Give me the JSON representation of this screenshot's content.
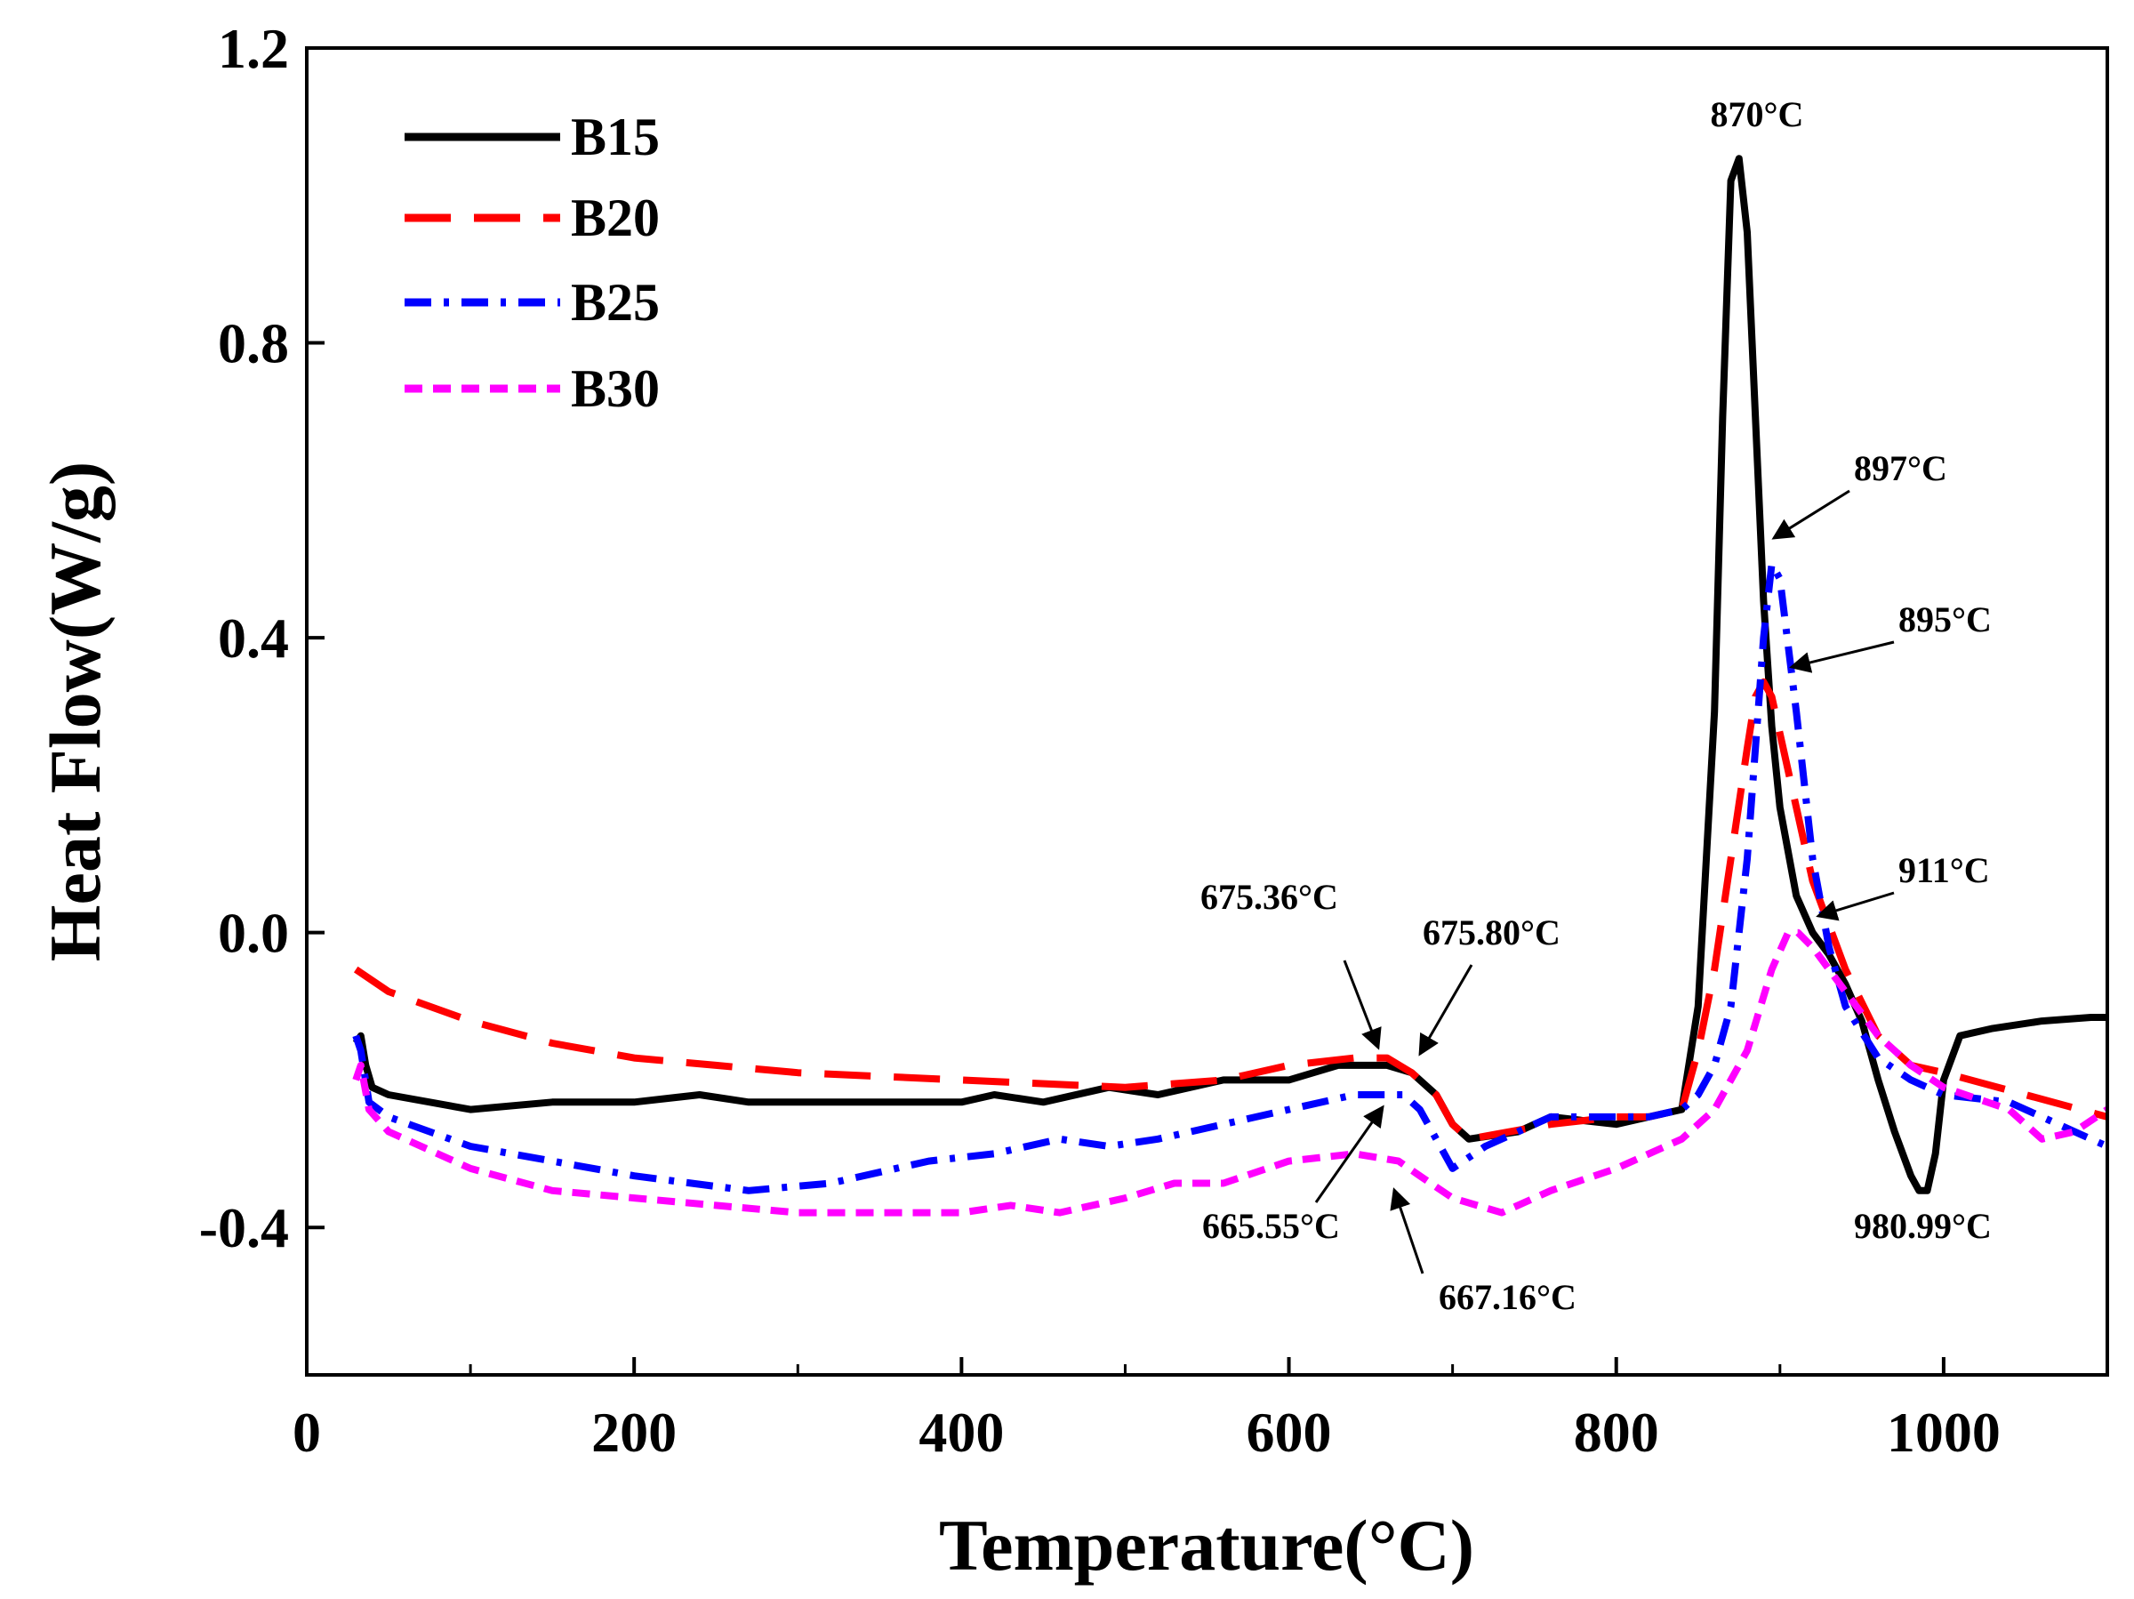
{
  "chart_data": {
    "type": "line",
    "title": "",
    "xlabel": "Temperature(°C)",
    "ylabel": "Heat Flow(W/g)",
    "xlim": [
      0,
      1100
    ],
    "ylim": [
      -0.6,
      1.2
    ],
    "xticks": [
      0,
      200,
      400,
      600,
      800,
      1000
    ],
    "xtick_labels": [
      "0",
      "200",
      "400",
      "600",
      "800",
      "1000"
    ],
    "xminor": [
      100,
      300,
      500,
      700,
      900,
      1100
    ],
    "yticks": [
      -0.4,
      0.0,
      0.4,
      0.8,
      1.2
    ],
    "ytick_labels": [
      "-0.4",
      "0.0",
      "0.4",
      "0.8",
      "1.2"
    ],
    "legend_position": "top-left",
    "series": [
      {
        "name": "B15",
        "color": "#000000",
        "dash": "solid",
        "x": [
          30,
          33,
          36,
          40,
          50,
          100,
          150,
          200,
          240,
          270,
          300,
          400,
          420,
          450,
          490,
          520,
          560,
          600,
          630,
          650,
          660,
          675,
          690,
          700,
          710,
          740,
          760,
          800,
          820,
          840,
          850,
          860,
          865,
          870,
          875,
          880,
          885,
          890,
          895,
          900,
          910,
          920,
          930,
          940,
          950,
          960,
          970,
          980,
          985,
          990,
          995,
          1000,
          1010,
          1030,
          1060,
          1090,
          1100
        ],
        "y": [
          -0.15,
          -0.14,
          -0.18,
          -0.21,
          -0.22,
          -0.24,
          -0.23,
          -0.23,
          -0.22,
          -0.23,
          -0.23,
          -0.23,
          -0.22,
          -0.23,
          -0.21,
          -0.22,
          -0.2,
          -0.2,
          -0.18,
          -0.18,
          -0.18,
          -0.19,
          -0.22,
          -0.26,
          -0.28,
          -0.27,
          -0.25,
          -0.26,
          -0.25,
          -0.24,
          -0.1,
          0.3,
          0.7,
          1.02,
          1.05,
          0.95,
          0.7,
          0.45,
          0.28,
          0.17,
          0.05,
          0.0,
          -0.03,
          -0.07,
          -0.12,
          -0.2,
          -0.27,
          -0.33,
          -0.35,
          -0.35,
          -0.3,
          -0.2,
          -0.14,
          -0.13,
          -0.12,
          -0.115,
          -0.115
        ]
      },
      {
        "name": "B20",
        "color": "#ff0000",
        "dash": "long-dash",
        "x": [
          30,
          50,
          100,
          150,
          200,
          250,
          300,
          400,
          500,
          560,
          600,
          640,
          660,
          675,
          690,
          700,
          710,
          760,
          800,
          820,
          840,
          850,
          860,
          870,
          880,
          885,
          890,
          895,
          900,
          910,
          920,
          940,
          960,
          980,
          1000,
          1050,
          1100
        ],
        "y": [
          -0.05,
          -0.08,
          -0.12,
          -0.15,
          -0.17,
          -0.18,
          -0.19,
          -0.2,
          -0.21,
          -0.2,
          -0.18,
          -0.17,
          -0.17,
          -0.19,
          -0.22,
          -0.26,
          -0.28,
          -0.26,
          -0.25,
          -0.25,
          -0.24,
          -0.16,
          -0.05,
          0.1,
          0.25,
          0.32,
          0.34,
          0.32,
          0.27,
          0.17,
          0.07,
          -0.05,
          -0.14,
          -0.18,
          -0.19,
          -0.22,
          -0.25
        ]
      },
      {
        "name": "B25",
        "color": "#0000ff",
        "dash": "dash-dot",
        "x": [
          30,
          33,
          38,
          50,
          100,
          150,
          200,
          270,
          320,
          380,
          420,
          460,
          490,
          520,
          560,
          600,
          640,
          660,
          670,
          680,
          690,
          700,
          720,
          740,
          760,
          800,
          820,
          840,
          850,
          860,
          870,
          880,
          890,
          895,
          900,
          910,
          920,
          930,
          940,
          960,
          980,
          1000,
          1040,
          1070,
          1090,
          1100
        ],
        "y": [
          -0.14,
          -0.16,
          -0.23,
          -0.25,
          -0.29,
          -0.31,
          -0.33,
          -0.35,
          -0.34,
          -0.31,
          -0.3,
          -0.28,
          -0.29,
          -0.28,
          -0.26,
          -0.24,
          -0.22,
          -0.22,
          -0.22,
          -0.24,
          -0.28,
          -0.32,
          -0.29,
          -0.27,
          -0.25,
          -0.25,
          -0.25,
          -0.24,
          -0.22,
          -0.18,
          -0.1,
          0.1,
          0.4,
          0.5,
          0.48,
          0.3,
          0.1,
          -0.02,
          -0.1,
          -0.17,
          -0.2,
          -0.22,
          -0.23,
          -0.26,
          -0.28,
          -0.29
        ]
      },
      {
        "name": "B30",
        "color": "#ff00ff",
        "dash": "short-dash",
        "x": [
          30,
          33,
          38,
          50,
          100,
          150,
          200,
          250,
          300,
          350,
          400,
          430,
          460,
          500,
          530,
          560,
          600,
          640,
          667,
          680,
          700,
          730,
          760,
          800,
          840,
          860,
          880,
          895,
          905,
          911,
          920,
          940,
          960,
          980,
          1000,
          1040,
          1060,
          1080,
          1100
        ],
        "y": [
          -0.2,
          -0.18,
          -0.24,
          -0.27,
          -0.32,
          -0.35,
          -0.36,
          -0.37,
          -0.38,
          -0.38,
          -0.38,
          -0.37,
          -0.38,
          -0.36,
          -0.34,
          -0.34,
          -0.31,
          -0.3,
          -0.31,
          -0.33,
          -0.36,
          -0.38,
          -0.35,
          -0.32,
          -0.28,
          -0.24,
          -0.16,
          -0.05,
          0.0,
          0.0,
          -0.02,
          -0.08,
          -0.14,
          -0.18,
          -0.21,
          -0.24,
          -0.28,
          -0.27,
          -0.24
        ]
      }
    ],
    "annotations": [
      {
        "text": "870°C",
        "series": "B15",
        "arrow": false
      },
      {
        "text": "897°C",
        "series": "B25",
        "arrow": true
      },
      {
        "text": "895°C",
        "series": "B20",
        "arrow": true
      },
      {
        "text": "911°C",
        "series": "B30",
        "arrow": true
      },
      {
        "text": "675.36°C",
        "series": "B15",
        "arrow": true
      },
      {
        "text": "675.80°C",
        "series": "B20",
        "arrow": true
      },
      {
        "text": "665.55°C",
        "series": "B25",
        "arrow": true
      },
      {
        "text": "667.16°C",
        "series": "B30",
        "arrow": true
      },
      {
        "text": "980.99°C",
        "series": "B15",
        "arrow": false
      }
    ]
  }
}
